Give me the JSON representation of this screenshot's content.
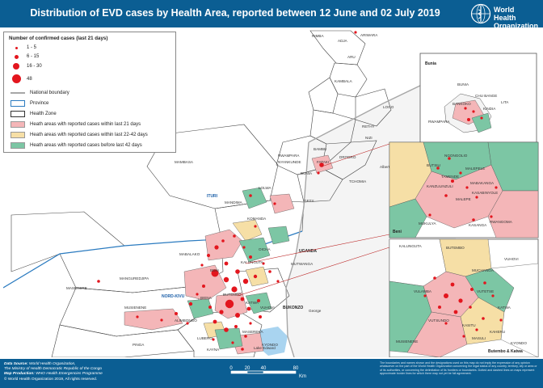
{
  "header": {
    "title": "Distribution of EVD cases by Health Area, reported between 12 June and 02 July 2019",
    "logo_line1": "World Health",
    "logo_line2": "Organization"
  },
  "legend": {
    "title": "Number of confirmed cases (last 21 days)",
    "size_classes": [
      "1 - 5",
      "6 - 15",
      "16 - 30",
      "48"
    ],
    "national_boundary": "National boundary",
    "province": "Province",
    "health_zone": "Health Zone",
    "area_last21": "Heath areas with reported cases within last 21 days",
    "area_22_42": "Heath areas with reported cases within last 22-42 days",
    "area_before42": "Heath areas with reported cases before last 42 days"
  },
  "colors": {
    "header_bg": "#0b5e93",
    "case_dot": "#e3161e",
    "area_last21": "#f4b6b8",
    "area_22_42": "#f6dfa6",
    "area_before42": "#7cc6a4",
    "lake": "#a9d4f0",
    "province_line": "#2b7bc0",
    "national_boundary": "#a7a7a7"
  },
  "map_labels": {
    "countries": [
      "UGANDA"
    ],
    "provinces": [
      "ITURI",
      "NORD-KIVU"
    ],
    "zones": [
      "RIMBA",
      "ADJA",
      "ARIWARA",
      "ARU",
      "KAMBALA",
      "LOGO",
      "RETHY",
      "NIZI",
      "BAMBU",
      "FATAKI",
      "DRODRO",
      "RWAMPARA",
      "NYANKUNDE",
      "BUNIA",
      "TCHOMIA",
      "GETY",
      "MAMBASA",
      "MANDIMA",
      "KOMANDA",
      "LOLWA",
      "OICHA",
      "MABALAKO",
      "BENI",
      "KALUNGUTA",
      "MANGUREDJIPA",
      "MUSIENENE",
      "BUTEMBO",
      "KATWA",
      "VUHOVI",
      "LUBERO",
      "MUTWANGA",
      "MASEREKA",
      "PINGA",
      "KAYNA",
      "ALIMBONGO",
      "BIENA",
      "KYONDO",
      "BUKONZO",
      "MASERERE"
    ],
    "water": [
      "Albert",
      "Lake Edward",
      "George",
      "Edward"
    ]
  },
  "insets": {
    "bunia": {
      "title": "Bunia",
      "labels": [
        "BUNIA",
        "LITA",
        "RWAMPARA",
        "BANKOKO",
        "CHU BANGE",
        "KINDIA",
        "NGONGO",
        "ONGO",
        "RANKO"
      ]
    },
    "beni": {
      "title": "Beni",
      "labels": [
        "NGONGOLIO",
        "BUTSILI",
        "MALEPELE",
        "TAMENDE",
        "KANZULINZULI",
        "MABAKANGA",
        "KASABINYOLE",
        "MALEPE",
        "MUKULYA",
        "KASANGA",
        "RWANGOMA"
      ]
    },
    "butembo": {
      "title": "Butembo & Katwa",
      "labels": [
        "KALUNGUTA",
        "BUTEMBO",
        "VUHOVI",
        "VULAMBA",
        "KATWA",
        "VUTSUNDO",
        "MUSIENENE",
        "KASITU",
        "MASULI",
        "KAHERU",
        "KYONDO",
        "MUCHANGA",
        "VUTETSE"
      ]
    }
  },
  "scale": {
    "ticks": [
      "0",
      "20",
      "40",
      "80"
    ],
    "unit": "Km"
  },
  "footer": {
    "line1_label": "Data Source:",
    "line1_value": "World Health Organization,",
    "line2_value": "The Ministry of Health Democratic Republic of the Congo",
    "line3_label": "Map Production:",
    "line3_value": "WHO Health Emergencies Programme",
    "line4_value": "© World Health Organization 2019, All rights reserved.",
    "disclaimer": "The boundaries and names shown and the designations used on this map do not imply the expression of any opinion whatsoever on the part of the World Health Organization concerning the legal status of any country, territory, city or area or of its authorities, or concerning the delimitation of its frontiers or boundaries. Dotted and dashed lines on maps represent approximate border lines for which there may not yet be full agreement."
  }
}
